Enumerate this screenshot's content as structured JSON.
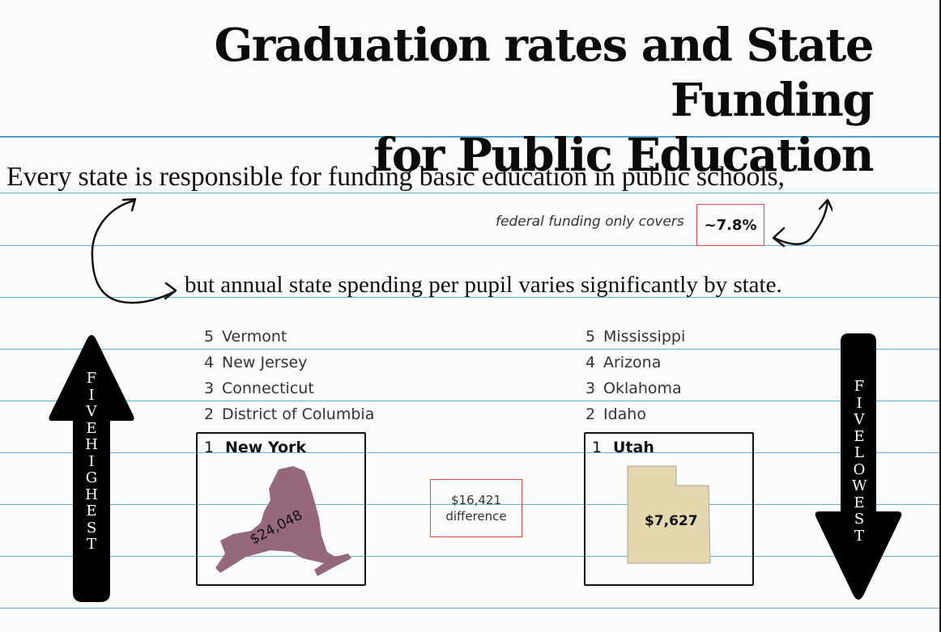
{
  "title": {
    "line1": "Graduation rates and State Funding",
    "line2": "for Public Education"
  },
  "intro": "Every state is responsible for funding basic education in public schools,",
  "federal": {
    "label": "federal funding only covers",
    "value": "~7.8%"
  },
  "second": "but annual state spending per pupil varies significantly by state.",
  "highest": {
    "label": "FIVE HIGHEST",
    "ranks": [
      {
        "rank": "5",
        "state": "Vermont"
      },
      {
        "rank": "4",
        "state": "New Jersey"
      },
      {
        "rank": "3",
        "state": "Connecticut"
      },
      {
        "rank": "2",
        "state": "District of Columbia"
      }
    ],
    "top": {
      "rank": "1",
      "state": "New York",
      "amount": "$24,048",
      "color": "#95687e"
    }
  },
  "lowest": {
    "label": "FIVE LOWEST",
    "ranks": [
      {
        "rank": "5",
        "state": "Mississippi"
      },
      {
        "rank": "4",
        "state": "Arizona"
      },
      {
        "rank": "3",
        "state": "Oklahoma"
      },
      {
        "rank": "2",
        "state": "Idaho"
      }
    ],
    "top": {
      "rank": "1",
      "state": "Utah",
      "amount": "$7,627",
      "color": "#e3d7ad"
    }
  },
  "difference": {
    "amount": "$16,421",
    "label": "difference"
  },
  "colors": {
    "rule": "#63b4d3",
    "accent_box": "#d8483f",
    "arrow": "#000000"
  },
  "icons": [
    "up-arrow-icon",
    "down-arrow-icon",
    "curved-arrow-icon",
    "new-york-map-icon",
    "utah-map-icon"
  ]
}
